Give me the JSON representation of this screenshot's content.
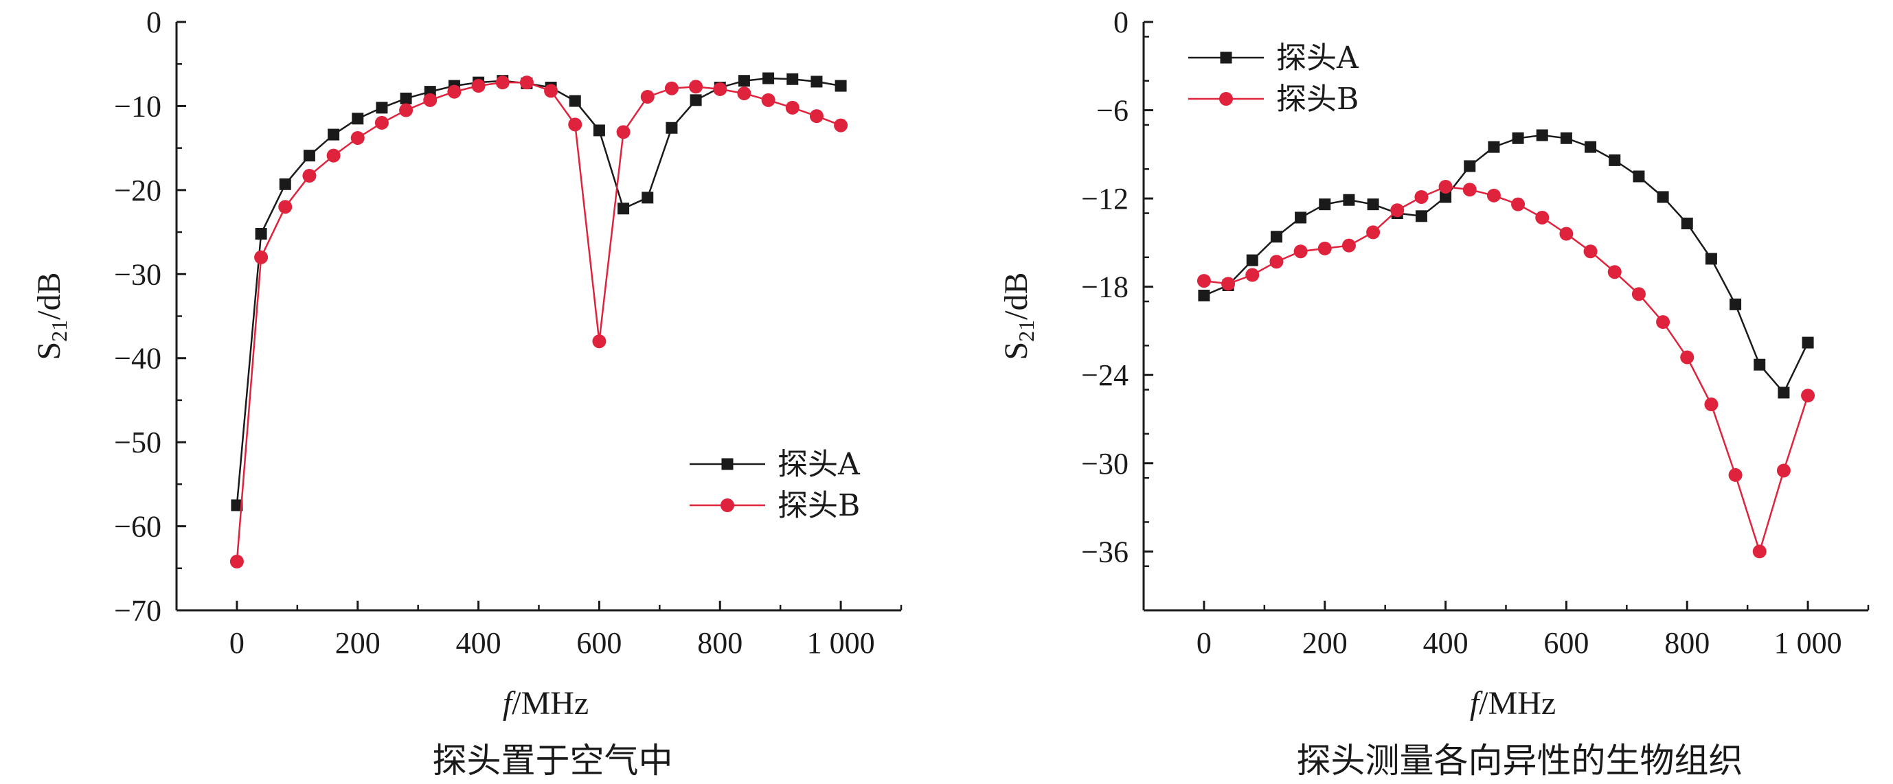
{
  "chart_data": [
    {
      "type": "line",
      "caption": "探头置于空气中",
      "xlabel": "f/MHz",
      "ylabel": "S21/dB",
      "xlim": [
        -100,
        1100
      ],
      "ylim": [
        -70,
        0
      ],
      "xticks": [
        0,
        200,
        400,
        600,
        800,
        1000
      ],
      "xtick_labels": [
        "0",
        "200",
        "400",
        "600",
        "800",
        "1 000"
      ],
      "yticks": [
        0,
        -10,
        -20,
        -30,
        -40,
        -50,
        -60,
        -70
      ],
      "ytick_labels": [
        "0",
        "−10",
        "−20",
        "−30",
        "−40",
        "−50",
        "−60",
        "−70"
      ],
      "legend_position": "lower-right",
      "x": [
        0,
        40,
        80,
        120,
        160,
        200,
        240,
        280,
        320,
        360,
        400,
        440,
        480,
        520,
        560,
        600,
        640,
        680,
        720,
        760,
        800,
        840,
        880,
        920,
        960,
        1000
      ],
      "series": [
        {
          "name": "探头A",
          "color": "#1a1a1a",
          "marker": "square",
          "values": [
            -57.5,
            -25.2,
            -19.3,
            -15.9,
            -13.4,
            -11.5,
            -10.2,
            -9.1,
            -8.3,
            -7.6,
            -7.2,
            -7.0,
            -7.3,
            -7.8,
            -9.4,
            -12.9,
            -22.2,
            -20.9,
            -12.6,
            -9.3,
            -7.8,
            -7.0,
            -6.7,
            -6.8,
            -7.1,
            -7.6
          ]
        },
        {
          "name": "探头B",
          "color": "#e0233c",
          "marker": "circle",
          "values": [
            -64.2,
            -28.0,
            -22.0,
            -18.3,
            -15.9,
            -13.8,
            -12.0,
            -10.5,
            -9.3,
            -8.3,
            -7.6,
            -7.2,
            -7.2,
            -8.2,
            -12.2,
            -38.0,
            -13.1,
            -8.9,
            -7.9,
            -7.7,
            -8.0,
            -8.5,
            -9.3,
            -10.2,
            -11.2,
            -12.3
          ]
        }
      ]
    },
    {
      "type": "line",
      "caption": "探头测量各向异性的生物组织",
      "xlabel": "f/MHz",
      "ylabel": "S21/dB",
      "xlim": [
        -100,
        1100
      ],
      "ylim": [
        -40,
        0
      ],
      "xticks": [
        0,
        200,
        400,
        600,
        800,
        1000
      ],
      "xtick_labels": [
        "0",
        "200",
        "400",
        "600",
        "800",
        "1 000"
      ],
      "yticks": [
        0,
        -6,
        -12,
        -18,
        -24,
        -30,
        -36
      ],
      "ytick_labels": [
        "0",
        "−6",
        "−12",
        "−18",
        "−24",
        "−30",
        "−36"
      ],
      "legend_position": "top-left",
      "x": [
        0,
        40,
        80,
        120,
        160,
        200,
        240,
        280,
        320,
        360,
        400,
        440,
        480,
        520,
        560,
        600,
        640,
        680,
        720,
        760,
        800,
        840,
        880,
        920,
        960,
        1000
      ],
      "series": [
        {
          "name": "探头A",
          "color": "#1a1a1a",
          "marker": "square",
          "values": [
            -18.6,
            -17.9,
            -16.2,
            -14.6,
            -13.3,
            -12.4,
            -12.1,
            -12.4,
            -13.0,
            -13.2,
            -11.9,
            -9.8,
            -8.5,
            -7.9,
            -7.7,
            -7.9,
            -8.5,
            -9.4,
            -10.5,
            -11.9,
            -13.7,
            -16.1,
            -19.2,
            -23.3,
            -25.2,
            -21.8
          ]
        },
        {
          "name": "探头B",
          "color": "#e0233c",
          "marker": "circle",
          "values": [
            -17.6,
            -17.8,
            -17.2,
            -16.3,
            -15.6,
            -15.4,
            -15.2,
            -14.3,
            -12.8,
            -11.9,
            -11.2,
            -11.4,
            -11.8,
            -12.4,
            -13.3,
            -14.4,
            -15.6,
            -17.0,
            -18.5,
            -20.4,
            -22.8,
            -26.0,
            -30.8,
            -36.0,
            -30.5,
            -25.4
          ]
        }
      ]
    }
  ]
}
